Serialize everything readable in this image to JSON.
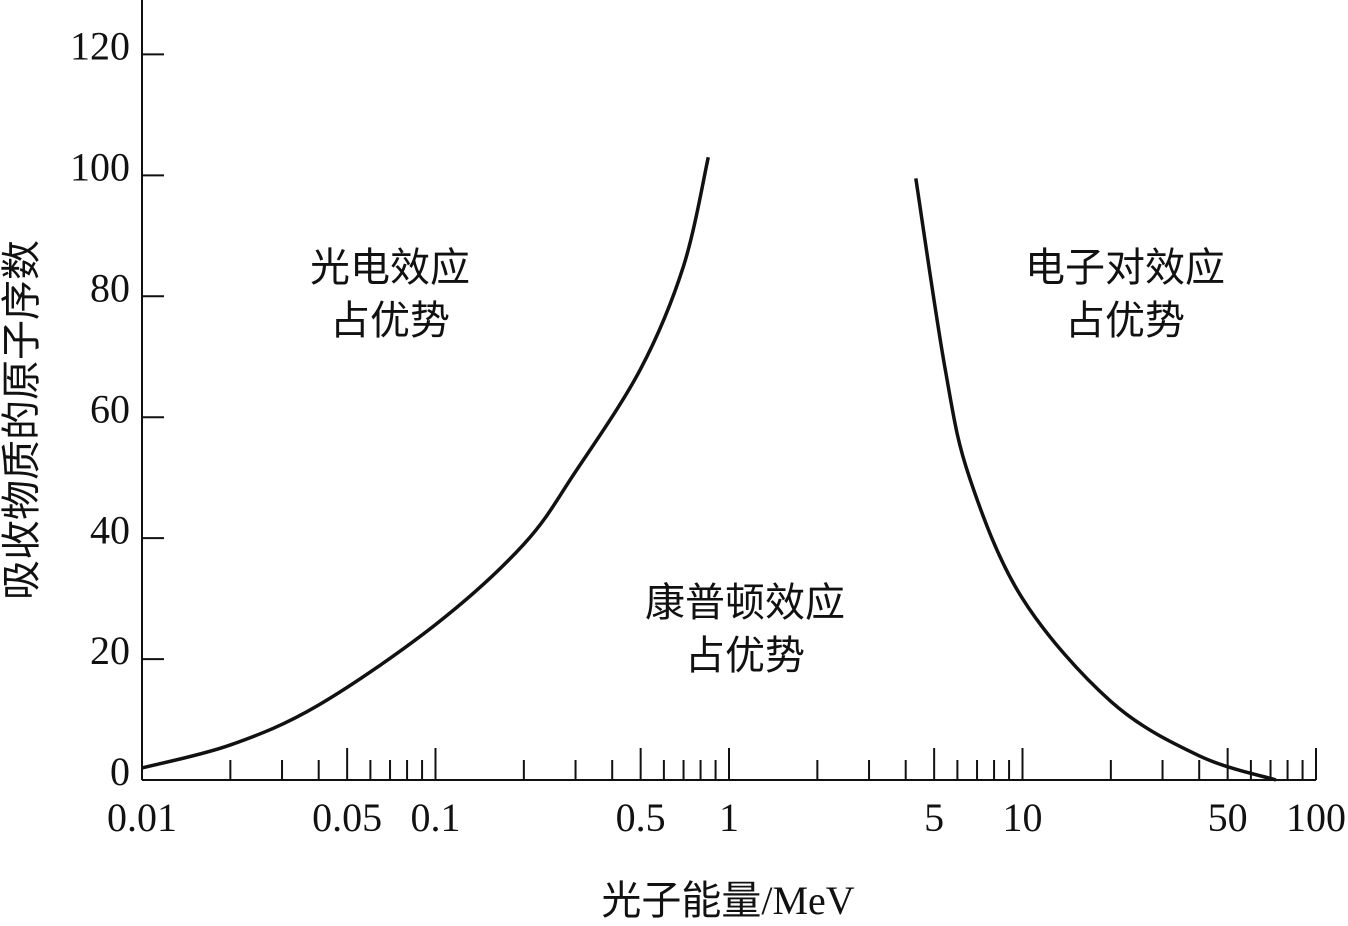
{
  "chart_data": {
    "type": "line",
    "x_label": "光子能量/MeV",
    "y_label": "吸收物质的原子序数",
    "xscale": "log",
    "xlim": [
      0.01,
      100
    ],
    "ylim": [
      0,
      129
    ],
    "xticks": [
      0.01,
      0.05,
      0.1,
      0.5,
      1,
      5,
      10,
      50,
      100
    ],
    "xminorticks": [
      0.02,
      0.03,
      0.04,
      0.06,
      0.07,
      0.08,
      0.09,
      0.2,
      0.3,
      0.4,
      0.6,
      0.7,
      0.8,
      0.9,
      2,
      3,
      4,
      6,
      7,
      8,
      9,
      20,
      30,
      40,
      60,
      70,
      80,
      90
    ],
    "yticks": [
      0,
      20,
      40,
      60,
      80,
      100,
      120
    ],
    "series": [
      {
        "color": "#111111",
        "x": [
          0.01,
          0.02,
          0.04,
          0.1,
          0.2,
          0.3,
          0.5,
          0.7,
          0.85
        ],
        "values": [
          2,
          5.8,
          12.4,
          25.7,
          39,
          51,
          68,
          85,
          103
        ]
      },
      {
        "color": "#111111",
        "x": [
          4.33,
          5.45,
          6.6,
          10,
          20,
          40,
          73
        ],
        "values": [
          99.5,
          68,
          50,
          30,
          13,
          4,
          0
        ]
      }
    ],
    "annotations": [
      {
        "lines": [
          "光电效应",
          "占优势"
        ]
      },
      {
        "lines": [
          "康普顿效应",
          "占优势"
        ]
      },
      {
        "lines": [
          "电子对效应",
          "占优势"
        ]
      }
    ]
  }
}
